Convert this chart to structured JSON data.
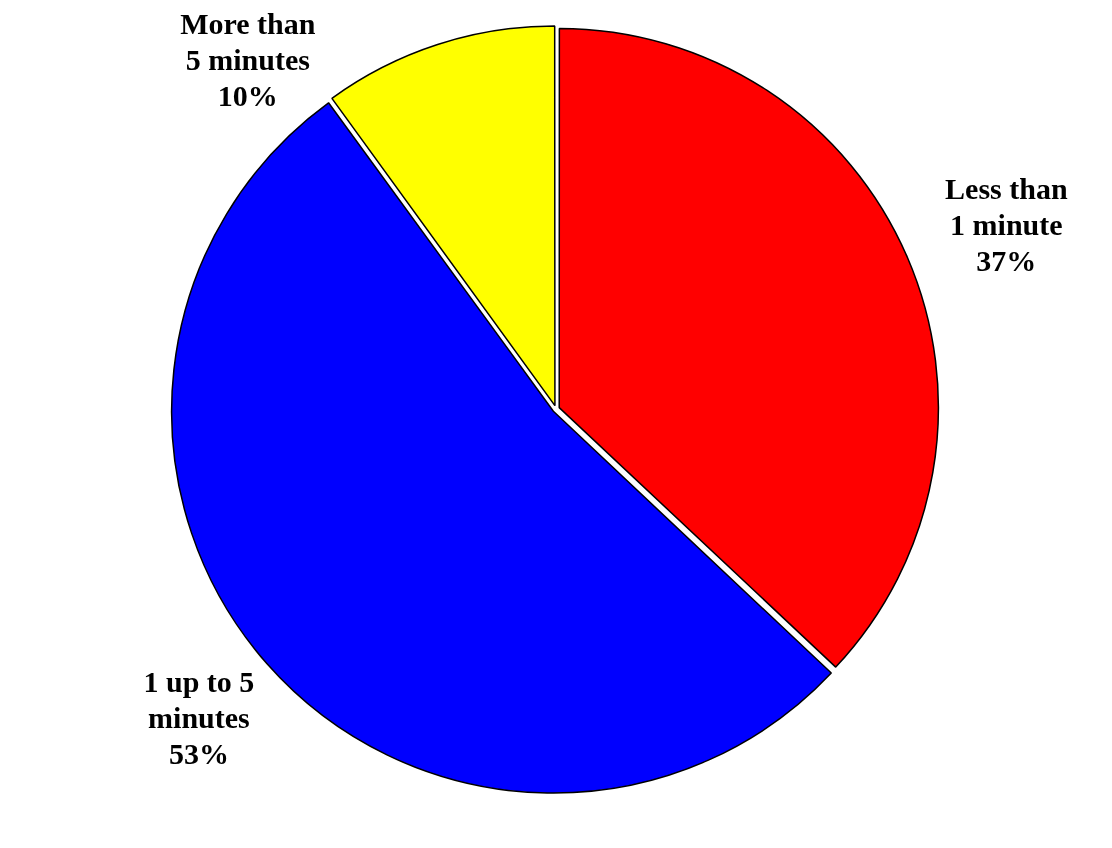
{
  "chart_data": {
    "type": "pie",
    "categories": [
      "Less than 1 minute",
      "1 up to 5 minutes",
      "More than 5 minutes"
    ],
    "values": [
      37,
      53,
      10
    ],
    "value_labels": [
      "37%",
      "53%",
      "10%"
    ],
    "colors": [
      "#ff0000",
      "#0000ff",
      "#ffff00"
    ],
    "legend": false
  }
}
